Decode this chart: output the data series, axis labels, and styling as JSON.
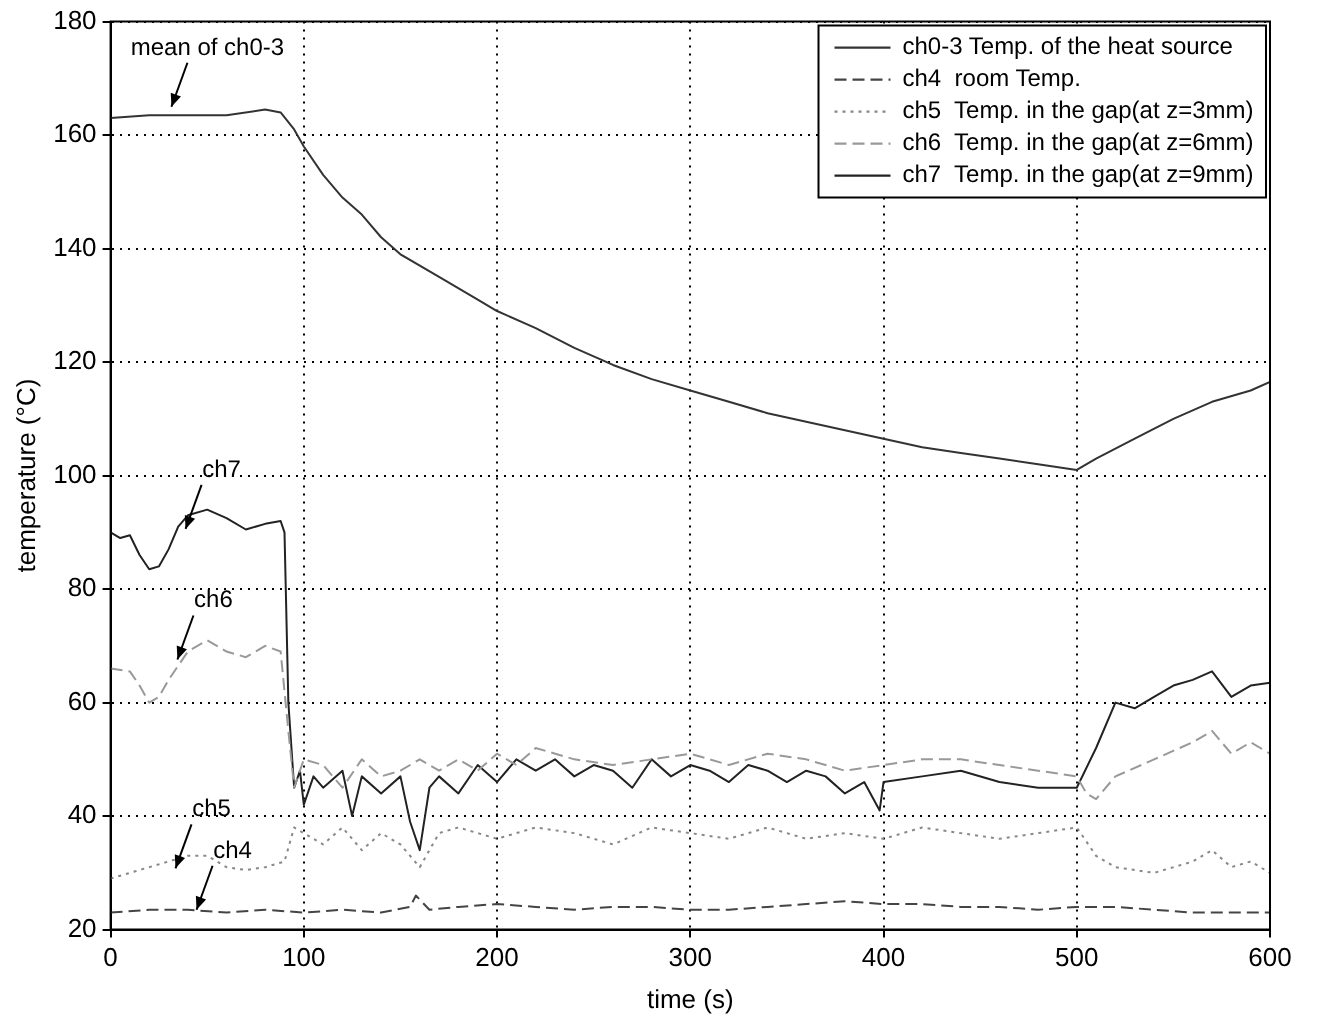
{
  "chart_data": {
    "type": "line",
    "xlabel": "time (s)",
    "ylabel": "temperature (°C)",
    "xlim": [
      0,
      600
    ],
    "xticks": [
      0,
      100,
      200,
      300,
      400,
      500,
      600
    ],
    "ylim": [
      20,
      180
    ],
    "yticks": [
      20,
      40,
      60,
      80,
      100,
      120,
      140,
      160,
      180
    ],
    "grid": true,
    "legend": "top right",
    "marker": "none",
    "annotations": [
      {
        "text": "mean of ch0-3",
        "x": 31.5,
        "y": 165
      },
      {
        "text": "ch7",
        "x": 38.8,
        "y": 90.6
      },
      {
        "text": "ch6",
        "x": 34.6,
        "y": 67.6
      },
      {
        "text": "ch5",
        "x": 33.6,
        "y": 30.8
      },
      {
        "text": "ch4",
        "x": 44.5,
        "y": 23.5
      }
    ],
    "series": [
      {
        "name": "ch0-3 Temp. of the heat source",
        "color": "#333333",
        "line_style": "solid",
        "x": [
          0,
          20,
          40,
          60,
          80,
          88,
          95,
          100,
          110,
          120,
          130,
          140,
          150,
          170,
          190,
          200,
          220,
          240,
          260,
          280,
          300,
          320,
          340,
          360,
          380,
          400,
          420,
          440,
          460,
          480,
          500,
          510,
          530,
          550,
          570,
          590,
          600
        ],
        "values": [
          163,
          163.5,
          163.5,
          163.5,
          164.5,
          164,
          161,
          158,
          153,
          149,
          146,
          142,
          139,
          135,
          131,
          129,
          126,
          122.5,
          119.5,
          117,
          115,
          113,
          111,
          109.5,
          108,
          106.5,
          105,
          104,
          103,
          102,
          101,
          103,
          106.5,
          110,
          113,
          115,
          116.5
        ]
      },
      {
        "name": "ch4  room Temp.",
        "color": "#444444",
        "line_style": "dashed",
        "x": [
          0,
          20,
          40,
          60,
          80,
          100,
          120,
          140,
          155,
          158,
          165,
          180,
          200,
          220,
          240,
          260,
          280,
          300,
          320,
          340,
          360,
          380,
          400,
          420,
          440,
          460,
          480,
          500,
          520,
          540,
          560,
          580,
          600
        ],
        "values": [
          23,
          23.5,
          23.5,
          23,
          23.5,
          23,
          23.5,
          23,
          24,
          26,
          23.5,
          24,
          24.5,
          24,
          23.5,
          24,
          24,
          23.5,
          23.5,
          24,
          24.5,
          25,
          24.5,
          24.5,
          24,
          24,
          23.5,
          24,
          24,
          23.5,
          23,
          23,
          23
        ]
      },
      {
        "name": "ch5  Temp. in the gap(at z=3mm)",
        "color": "#888888",
        "line_style": "dotted",
        "x": [
          0,
          10,
          20,
          30,
          40,
          50,
          60,
          70,
          80,
          90,
          95,
          100,
          110,
          120,
          130,
          140,
          150,
          160,
          170,
          180,
          200,
          220,
          240,
          260,
          280,
          300,
          320,
          340,
          360,
          380,
          400,
          420,
          440,
          460,
          480,
          500,
          510,
          520,
          540,
          560,
          570,
          580,
          590,
          600
        ],
        "values": [
          29,
          30,
          31,
          32,
          33,
          33,
          31,
          30.5,
          31,
          32,
          38,
          37,
          35,
          38,
          34,
          37,
          35,
          31,
          37,
          38,
          36,
          38,
          37,
          35,
          38,
          37,
          36,
          38,
          36,
          37,
          36,
          38,
          37,
          36,
          37,
          38,
          33,
          31,
          30,
          32,
          34,
          31,
          32,
          30
        ]
      },
      {
        "name": "ch6  Temp. in the gap(at z=6mm)",
        "color": "#999999",
        "line_style": "dashed",
        "x": [
          0,
          10,
          15,
          20,
          25,
          30,
          40,
          50,
          60,
          70,
          80,
          88,
          92,
          95,
          100,
          110,
          120,
          130,
          140,
          150,
          160,
          170,
          180,
          190,
          200,
          210,
          220,
          240,
          260,
          280,
          300,
          320,
          340,
          360,
          380,
          400,
          420,
          440,
          460,
          480,
          500,
          505,
          510,
          520,
          540,
          560,
          570,
          580,
          590,
          600
        ],
        "values": [
          66,
          65.5,
          63,
          60,
          61,
          64,
          69,
          71,
          69,
          68,
          70,
          69,
          55,
          45,
          50,
          49,
          45,
          50,
          47,
          48,
          50,
          48,
          50,
          48,
          51,
          49,
          52,
          50,
          49,
          50,
          51,
          49,
          51,
          50,
          48,
          49,
          50,
          50,
          49,
          48,
          47,
          44,
          43,
          47,
          50,
          53,
          55,
          51,
          53,
          51
        ]
      },
      {
        "name": "ch7  Temp. in the gap(at z=9mm)",
        "color": "#222222",
        "line_style": "solid",
        "x": [
          0,
          5,
          10,
          15,
          20,
          25,
          30,
          35,
          40,
          50,
          60,
          70,
          80,
          88,
          90,
          92,
          95,
          98,
          100,
          105,
          110,
          120,
          125,
          130,
          140,
          150,
          155,
          160,
          165,
          170,
          180,
          190,
          200,
          210,
          220,
          230,
          240,
          250,
          260,
          270,
          280,
          290,
          300,
          310,
          320,
          330,
          340,
          350,
          360,
          370,
          380,
          390,
          398,
          400,
          420,
          440,
          460,
          480,
          500,
          510,
          520,
          530,
          540,
          550,
          560,
          570,
          580,
          590,
          600
        ],
        "values": [
          90,
          89,
          89.5,
          86,
          83.5,
          84,
          87,
          91,
          93,
          94,
          92.5,
          90.5,
          91.5,
          92,
          90,
          60,
          45,
          48,
          42,
          47,
          45,
          48,
          40,
          47,
          44,
          47,
          39,
          34,
          45,
          47,
          44,
          49,
          46,
          50,
          48,
          50,
          47,
          49,
          48,
          45,
          50,
          47,
          49,
          48,
          46,
          49,
          48,
          46,
          48,
          47,
          44,
          46,
          41,
          46,
          47,
          48,
          46,
          45,
          45,
          52,
          60,
          59,
          61,
          63,
          64,
          65.5,
          61,
          63,
          63.5
        ]
      }
    ]
  }
}
